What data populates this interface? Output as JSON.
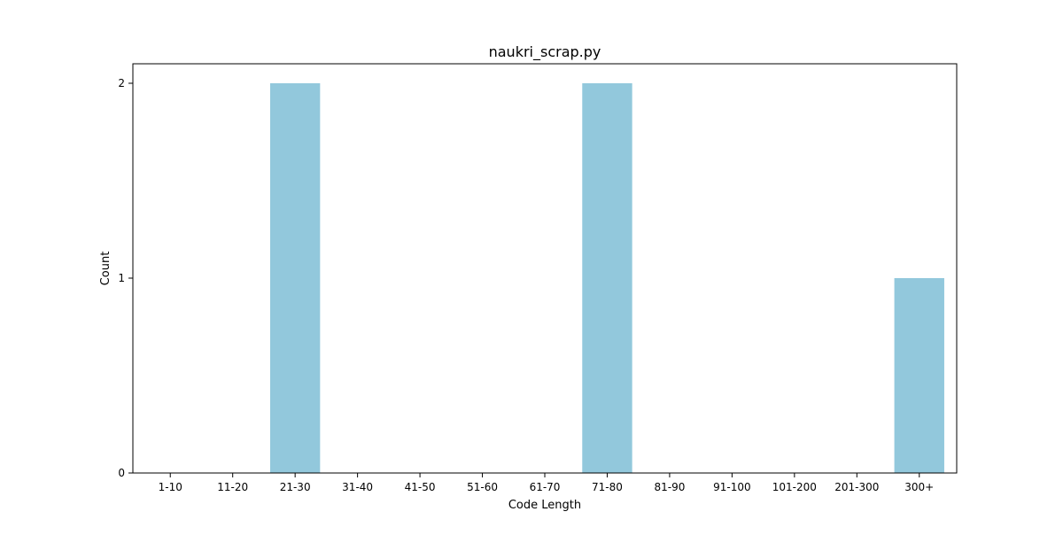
{
  "chart_data": {
    "type": "bar",
    "title": "naukri_scrap.py",
    "xlabel": "Code Length",
    "ylabel": "Count",
    "categories": [
      "1-10",
      "11-20",
      "21-30",
      "31-40",
      "41-50",
      "51-60",
      "61-70",
      "71-80",
      "81-90",
      "91-100",
      "101-200",
      "201-300",
      "300+"
    ],
    "values": [
      0,
      0,
      2,
      0,
      0,
      0,
      0,
      2,
      0,
      0,
      0,
      0,
      1
    ],
    "ylim": [
      0,
      2.1
    ],
    "yticks": [
      "0",
      "1",
      "2"
    ],
    "bar_color": "#92c8dc",
    "grid": false,
    "legend": "none"
  }
}
